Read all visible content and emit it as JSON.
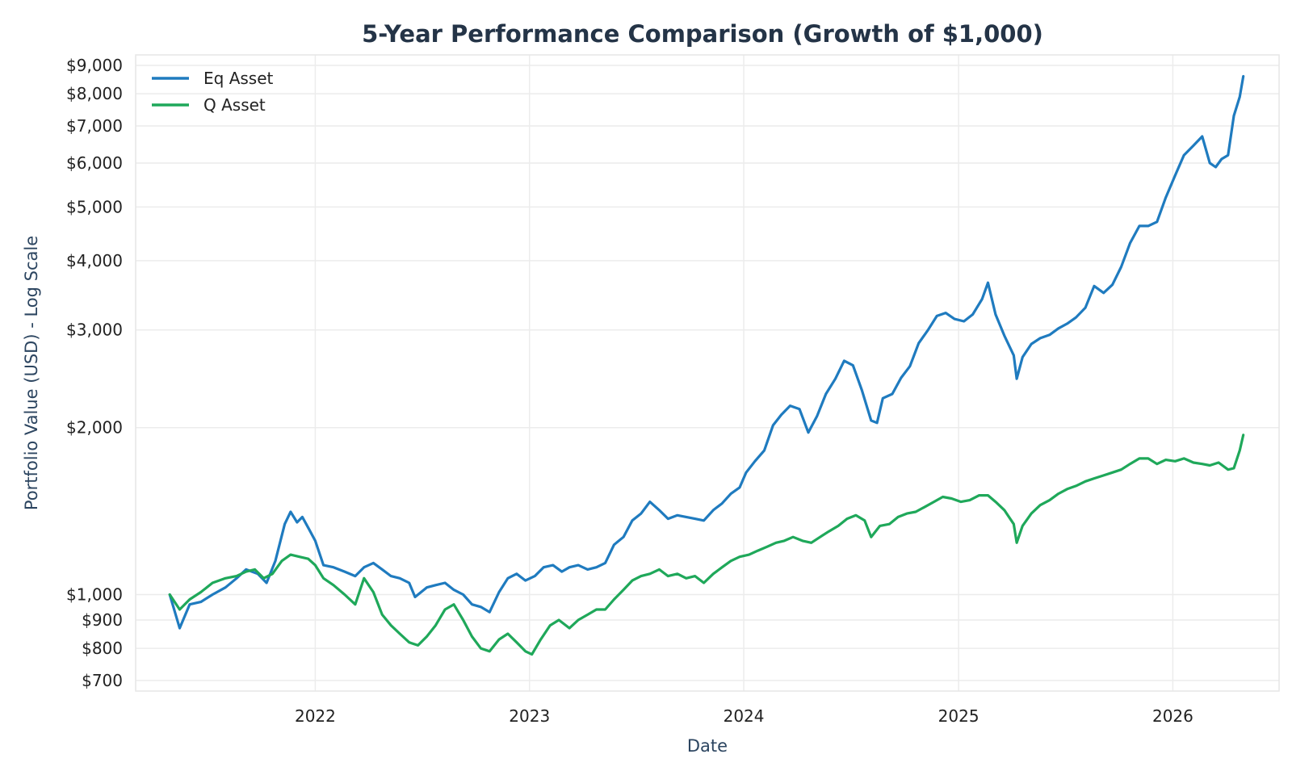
{
  "chart_data": {
    "type": "line",
    "title": "5-Year Performance Comparison (Growth of $1,000)",
    "xlabel": "Date",
    "ylabel": "Portfolio Value (USD) - Log Scale",
    "yscale": "log",
    "ylim": [
      670,
      9400
    ],
    "xlim": [
      "2021-03-01",
      "2026-07-01"
    ],
    "grid": true,
    "legend_position": "top-left",
    "x_ticks": [
      {
        "date": "2022-01-01",
        "label": "2022"
      },
      {
        "date": "2023-01-01",
        "label": "2023"
      },
      {
        "date": "2024-01-01",
        "label": "2024"
      },
      {
        "date": "2025-01-01",
        "label": "2025"
      },
      {
        "date": "2026-01-01",
        "label": "2026"
      }
    ],
    "y_ticks": [
      {
        "value": 700,
        "label": "$700"
      },
      {
        "value": 800,
        "label": "$800"
      },
      {
        "value": 900,
        "label": "$900"
      },
      {
        "value": 1000,
        "label": "$1,000"
      },
      {
        "value": 2000,
        "label": "$2,000"
      },
      {
        "value": 3000,
        "label": "$3,000"
      },
      {
        "value": 4000,
        "label": "$4,000"
      },
      {
        "value": 5000,
        "label": "$5,000"
      },
      {
        "value": 6000,
        "label": "$6,000"
      },
      {
        "value": 7000,
        "label": "$7,000"
      },
      {
        "value": 8000,
        "label": "$8,000"
      },
      {
        "value": 9000,
        "label": "$9,000"
      }
    ],
    "series": [
      {
        "name": "Eq Asset",
        "color": "#1f7bbf",
        "points": [
          [
            "2021-04-28",
            1000
          ],
          [
            "2021-05-15",
            870
          ],
          [
            "2021-06-01",
            960
          ],
          [
            "2021-06-20",
            970
          ],
          [
            "2021-07-10",
            1000
          ],
          [
            "2021-08-01",
            1030
          ],
          [
            "2021-08-20",
            1070
          ],
          [
            "2021-09-05",
            1110
          ],
          [
            "2021-09-25",
            1090
          ],
          [
            "2021-10-10",
            1050
          ],
          [
            "2021-10-25",
            1150
          ],
          [
            "2021-11-10",
            1340
          ],
          [
            "2021-11-20",
            1410
          ],
          [
            "2021-12-01",
            1350
          ],
          [
            "2021-12-10",
            1380
          ],
          [
            "2021-12-20",
            1320
          ],
          [
            "2022-01-01",
            1250
          ],
          [
            "2022-01-15",
            1130
          ],
          [
            "2022-02-01",
            1120
          ],
          [
            "2022-02-20",
            1100
          ],
          [
            "2022-03-10",
            1080
          ],
          [
            "2022-03-25",
            1120
          ],
          [
            "2022-04-10",
            1140
          ],
          [
            "2022-04-25",
            1110
          ],
          [
            "2022-05-10",
            1080
          ],
          [
            "2022-05-25",
            1070
          ],
          [
            "2022-06-10",
            1050
          ],
          [
            "2022-06-20",
            990
          ],
          [
            "2022-07-10",
            1030
          ],
          [
            "2022-07-25",
            1040
          ],
          [
            "2022-08-10",
            1050
          ],
          [
            "2022-08-25",
            1020
          ],
          [
            "2022-09-10",
            1000
          ],
          [
            "2022-09-25",
            960
          ],
          [
            "2022-10-10",
            950
          ],
          [
            "2022-10-25",
            930
          ],
          [
            "2022-11-10",
            1010
          ],
          [
            "2022-11-25",
            1070
          ],
          [
            "2022-12-10",
            1090
          ],
          [
            "2022-12-25",
            1060
          ],
          [
            "2023-01-10",
            1080
          ],
          [
            "2023-01-25",
            1120
          ],
          [
            "2023-02-10",
            1130
          ],
          [
            "2023-02-25",
            1100
          ],
          [
            "2023-03-10",
            1120
          ],
          [
            "2023-03-25",
            1130
          ],
          [
            "2023-04-10",
            1110
          ],
          [
            "2023-04-25",
            1120
          ],
          [
            "2023-05-10",
            1140
          ],
          [
            "2023-05-25",
            1230
          ],
          [
            "2023-06-10",
            1270
          ],
          [
            "2023-06-25",
            1360
          ],
          [
            "2023-07-10",
            1400
          ],
          [
            "2023-07-25",
            1470
          ],
          [
            "2023-08-10",
            1420
          ],
          [
            "2023-08-25",
            1370
          ],
          [
            "2023-09-10",
            1390
          ],
          [
            "2023-09-25",
            1380
          ],
          [
            "2023-10-10",
            1370
          ],
          [
            "2023-10-25",
            1360
          ],
          [
            "2023-11-10",
            1420
          ],
          [
            "2023-11-25",
            1460
          ],
          [
            "2023-12-10",
            1520
          ],
          [
            "2023-12-25",
            1560
          ],
          [
            "2024-01-05",
            1660
          ],
          [
            "2024-01-20",
            1740
          ],
          [
            "2024-02-05",
            1820
          ],
          [
            "2024-02-20",
            2020
          ],
          [
            "2024-03-05",
            2110
          ],
          [
            "2024-03-20",
            2190
          ],
          [
            "2024-04-05",
            2160
          ],
          [
            "2024-04-20",
            1960
          ],
          [
            "2024-05-05",
            2100
          ],
          [
            "2024-05-20",
            2300
          ],
          [
            "2024-06-05",
            2450
          ],
          [
            "2024-06-20",
            2640
          ],
          [
            "2024-07-05",
            2590
          ],
          [
            "2024-07-20",
            2340
          ],
          [
            "2024-08-05",
            2060
          ],
          [
            "2024-08-15",
            2040
          ],
          [
            "2024-08-25",
            2260
          ],
          [
            "2024-09-10",
            2300
          ],
          [
            "2024-09-25",
            2460
          ],
          [
            "2024-10-10",
            2580
          ],
          [
            "2024-10-25",
            2840
          ],
          [
            "2024-11-10",
            3000
          ],
          [
            "2024-11-25",
            3180
          ],
          [
            "2024-12-10",
            3220
          ],
          [
            "2024-12-25",
            3140
          ],
          [
            "2025-01-10",
            3110
          ],
          [
            "2025-01-25",
            3200
          ],
          [
            "2025-02-10",
            3410
          ],
          [
            "2025-02-20",
            3650
          ],
          [
            "2025-03-05",
            3200
          ],
          [
            "2025-03-20",
            2930
          ],
          [
            "2025-04-05",
            2700
          ],
          [
            "2025-04-10",
            2450
          ],
          [
            "2025-04-20",
            2680
          ],
          [
            "2025-05-05",
            2830
          ],
          [
            "2025-05-20",
            2900
          ],
          [
            "2025-06-05",
            2940
          ],
          [
            "2025-06-20",
            3020
          ],
          [
            "2025-07-05",
            3080
          ],
          [
            "2025-07-20",
            3160
          ],
          [
            "2025-08-05",
            3290
          ],
          [
            "2025-08-20",
            3600
          ],
          [
            "2025-09-05",
            3500
          ],
          [
            "2025-09-20",
            3620
          ],
          [
            "2025-10-05",
            3900
          ],
          [
            "2025-10-20",
            4300
          ],
          [
            "2025-11-05",
            4620
          ],
          [
            "2025-11-20",
            4620
          ],
          [
            "2025-12-05",
            4700
          ],
          [
            "2025-12-20",
            5200
          ],
          [
            "2026-01-05",
            5700
          ],
          [
            "2026-01-20",
            6200
          ],
          [
            "2026-02-05",
            6450
          ],
          [
            "2026-02-20",
            6700
          ],
          [
            "2026-03-05",
            6000
          ],
          [
            "2026-03-15",
            5900
          ],
          [
            "2026-03-25",
            6100
          ],
          [
            "2026-04-05",
            6200
          ],
          [
            "2026-04-15",
            7300
          ],
          [
            "2026-04-25",
            7900
          ],
          [
            "2026-05-01",
            8600
          ]
        ]
      },
      {
        "name": "Q Asset",
        "color": "#1fa85a",
        "points": [
          [
            "2021-04-28",
            1000
          ],
          [
            "2021-05-15",
            940
          ],
          [
            "2021-06-01",
            980
          ],
          [
            "2021-06-20",
            1010
          ],
          [
            "2021-07-10",
            1050
          ],
          [
            "2021-08-01",
            1070
          ],
          [
            "2021-08-20",
            1080
          ],
          [
            "2021-09-05",
            1100
          ],
          [
            "2021-09-20",
            1110
          ],
          [
            "2021-10-05",
            1070
          ],
          [
            "2021-10-20",
            1090
          ],
          [
            "2021-11-05",
            1150
          ],
          [
            "2021-11-20",
            1180
          ],
          [
            "2021-12-05",
            1170
          ],
          [
            "2021-12-20",
            1160
          ],
          [
            "2022-01-01",
            1130
          ],
          [
            "2022-01-15",
            1070
          ],
          [
            "2022-02-01",
            1040
          ],
          [
            "2022-02-20",
            1000
          ],
          [
            "2022-03-10",
            960
          ],
          [
            "2022-03-25",
            1070
          ],
          [
            "2022-04-10",
            1010
          ],
          [
            "2022-04-25",
            920
          ],
          [
            "2022-05-10",
            880
          ],
          [
            "2022-05-25",
            850
          ],
          [
            "2022-06-10",
            820
          ],
          [
            "2022-06-25",
            810
          ],
          [
            "2022-07-10",
            840
          ],
          [
            "2022-07-25",
            880
          ],
          [
            "2022-08-10",
            940
          ],
          [
            "2022-08-25",
            960
          ],
          [
            "2022-09-10",
            900
          ],
          [
            "2022-09-25",
            840
          ],
          [
            "2022-10-10",
            800
          ],
          [
            "2022-10-25",
            790
          ],
          [
            "2022-11-10",
            830
          ],
          [
            "2022-11-25",
            850
          ],
          [
            "2022-12-10",
            820
          ],
          [
            "2022-12-25",
            790
          ],
          [
            "2023-01-05",
            780
          ],
          [
            "2023-01-20",
            830
          ],
          [
            "2023-02-05",
            880
          ],
          [
            "2023-02-20",
            900
          ],
          [
            "2023-03-10",
            870
          ],
          [
            "2023-03-25",
            900
          ],
          [
            "2023-04-10",
            920
          ],
          [
            "2023-04-25",
            940
          ],
          [
            "2023-05-10",
            940
          ],
          [
            "2023-05-25",
            980
          ],
          [
            "2023-06-10",
            1020
          ],
          [
            "2023-06-25",
            1060
          ],
          [
            "2023-07-10",
            1080
          ],
          [
            "2023-07-25",
            1090
          ],
          [
            "2023-08-10",
            1110
          ],
          [
            "2023-08-25",
            1080
          ],
          [
            "2023-09-10",
            1090
          ],
          [
            "2023-09-25",
            1070
          ],
          [
            "2023-10-10",
            1080
          ],
          [
            "2023-10-25",
            1050
          ],
          [
            "2023-11-10",
            1090
          ],
          [
            "2023-11-25",
            1120
          ],
          [
            "2023-12-10",
            1150
          ],
          [
            "2023-12-25",
            1170
          ],
          [
            "2024-01-10",
            1180
          ],
          [
            "2024-01-25",
            1200
          ],
          [
            "2024-02-10",
            1220
          ],
          [
            "2024-02-25",
            1240
          ],
          [
            "2024-03-10",
            1250
          ],
          [
            "2024-03-25",
            1270
          ],
          [
            "2024-04-10",
            1250
          ],
          [
            "2024-04-25",
            1240
          ],
          [
            "2024-05-10",
            1270
          ],
          [
            "2024-05-25",
            1300
          ],
          [
            "2024-06-10",
            1330
          ],
          [
            "2024-06-25",
            1370
          ],
          [
            "2024-07-10",
            1390
          ],
          [
            "2024-07-25",
            1360
          ],
          [
            "2024-08-05",
            1270
          ],
          [
            "2024-08-20",
            1330
          ],
          [
            "2024-09-05",
            1340
          ],
          [
            "2024-09-20",
            1380
          ],
          [
            "2024-10-05",
            1400
          ],
          [
            "2024-10-20",
            1410
          ],
          [
            "2024-11-05",
            1440
          ],
          [
            "2024-11-20",
            1470
          ],
          [
            "2024-12-05",
            1500
          ],
          [
            "2024-12-20",
            1490
          ],
          [
            "2025-01-05",
            1470
          ],
          [
            "2025-01-20",
            1480
          ],
          [
            "2025-02-05",
            1510
          ],
          [
            "2025-02-20",
            1510
          ],
          [
            "2025-03-05",
            1470
          ],
          [
            "2025-03-20",
            1420
          ],
          [
            "2025-04-05",
            1340
          ],
          [
            "2025-04-10",
            1240
          ],
          [
            "2025-04-20",
            1330
          ],
          [
            "2025-05-05",
            1400
          ],
          [
            "2025-05-20",
            1450
          ],
          [
            "2025-06-05",
            1480
          ],
          [
            "2025-06-20",
            1520
          ],
          [
            "2025-07-05",
            1550
          ],
          [
            "2025-07-20",
            1570
          ],
          [
            "2025-08-05",
            1600
          ],
          [
            "2025-08-20",
            1620
          ],
          [
            "2025-09-05",
            1640
          ],
          [
            "2025-09-20",
            1660
          ],
          [
            "2025-10-05",
            1680
          ],
          [
            "2025-10-20",
            1720
          ],
          [
            "2025-11-05",
            1760
          ],
          [
            "2025-11-20",
            1760
          ],
          [
            "2025-12-05",
            1720
          ],
          [
            "2025-12-20",
            1750
          ],
          [
            "2026-01-05",
            1740
          ],
          [
            "2026-01-20",
            1760
          ],
          [
            "2026-02-05",
            1730
          ],
          [
            "2026-02-20",
            1720
          ],
          [
            "2026-03-05",
            1710
          ],
          [
            "2026-03-20",
            1730
          ],
          [
            "2026-04-05",
            1680
          ],
          [
            "2026-04-15",
            1690
          ],
          [
            "2026-04-25",
            1820
          ],
          [
            "2026-05-01",
            1940
          ]
        ]
      }
    ]
  }
}
